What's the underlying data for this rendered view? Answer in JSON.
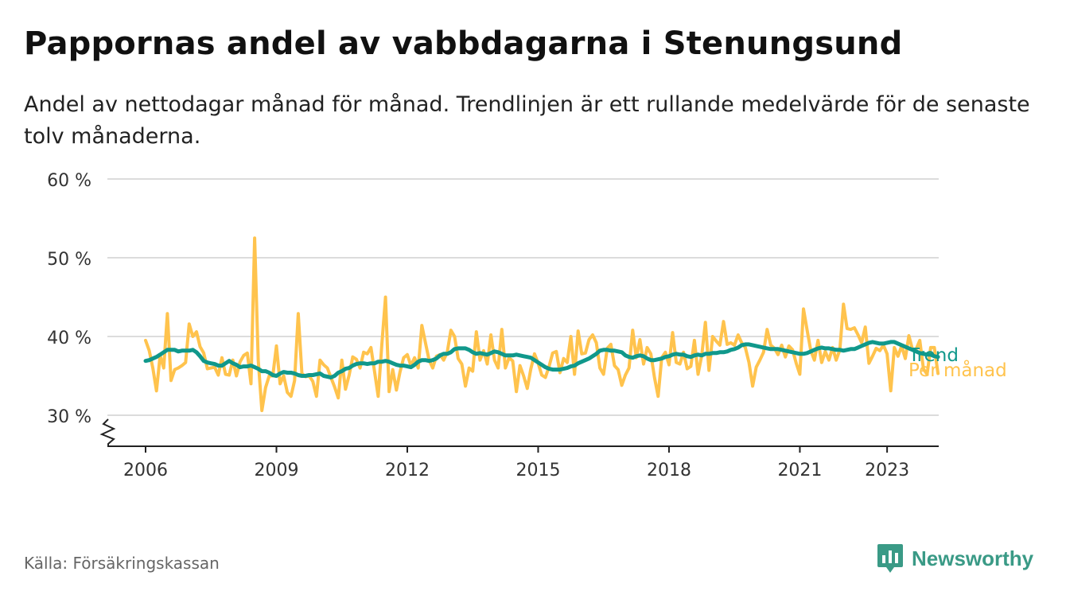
{
  "title": "Pappornas andel av vabbdagarna i Stenungsund",
  "subtitle": "Andel av nettodagar månad för månad. Trendlinjen är ett rullande medelvärde för de senaste tolv månaderna.",
  "source": "Källa: Försäkringskassan",
  "brand": {
    "name": "Newsworthy",
    "color": "#3a9a86",
    "icon": "bar-chart-bubble-icon"
  },
  "chart_data": {
    "type": "line",
    "ylim": [
      26,
      60
    ],
    "y_ticks": [
      30,
      40,
      50,
      60
    ],
    "y_tick_labels": [
      "30 %",
      "40 %",
      "50 %",
      "60 %"
    ],
    "y_axis_break": true,
    "x_ticks": [
      "2006",
      "2009",
      "2012",
      "2015",
      "2018",
      "2021",
      "2023"
    ],
    "x_start": "2006-01",
    "grid": "horizontal",
    "series": [
      {
        "name": "Per månad",
        "color": "#ffc34d",
        "values": [
          39.5,
          38.2,
          36.0,
          33.1,
          37.6,
          36.0,
          42.9,
          34.4,
          35.8,
          36.0,
          36.3,
          36.7,
          41.6,
          40.0,
          40.6,
          38.7,
          37.9,
          35.9,
          36.0,
          36.1,
          35.1,
          37.3,
          35.2,
          35.1,
          37.0,
          35.0,
          36.8,
          37.6,
          37.9,
          34.0,
          52.5,
          37.0,
          30.6,
          33.5,
          35.0,
          35.0,
          38.8,
          34.0,
          35.0,
          32.9,
          32.4,
          34.4,
          42.9,
          35.3,
          34.9,
          35.0,
          34.3,
          32.4,
          37.0,
          36.4,
          36.0,
          34.8,
          33.6,
          32.2,
          37.0,
          33.3,
          35.1,
          37.4,
          37.1,
          36.0,
          38.0,
          37.8,
          38.6,
          35.5,
          32.4,
          39.0,
          45.0,
          33.0,
          35.8,
          33.2,
          35.5,
          37.3,
          37.7,
          36.3,
          37.3,
          36.0,
          41.4,
          39.2,
          37.0,
          36.0,
          37.5,
          37.7,
          37.0,
          38.0,
          40.8,
          40.0,
          37.2,
          36.5,
          33.7,
          36.0,
          35.6,
          40.6,
          37.0,
          38.2,
          36.5,
          40.2,
          37.0,
          36.0,
          40.9,
          36.0,
          37.3,
          36.9,
          33.0,
          36.3,
          35.0,
          33.4,
          35.9,
          37.8,
          36.6,
          35.1,
          34.8,
          36.2,
          37.9,
          38.1,
          35.4,
          37.2,
          36.7,
          40.0,
          35.2,
          40.7,
          37.8,
          37.9,
          39.6,
          40.2,
          39.2,
          36.0,
          35.2,
          38.5,
          39.0,
          36.3,
          35.8,
          33.8,
          35.1,
          36.0,
          40.8,
          37.3,
          39.6,
          36.5,
          38.6,
          37.8,
          34.8,
          32.4,
          37.3,
          38.0,
          36.4,
          40.5,
          36.7,
          36.5,
          38.0,
          35.9,
          36.2,
          39.5,
          35.2,
          37.6,
          41.8,
          35.7,
          40.0,
          39.4,
          38.9,
          41.9,
          39.0,
          39.2,
          38.9,
          40.2,
          39.2,
          38.6,
          36.7,
          33.7,
          36.1,
          37.0,
          38.0,
          40.9,
          38.9,
          38.5,
          37.7,
          38.9,
          37.4,
          38.8,
          38.3,
          36.6,
          35.2,
          43.5,
          40.8,
          38.2,
          37.0,
          39.5,
          36.7,
          38.1,
          37.0,
          38.6,
          37.0,
          38.3,
          44.1,
          41.0,
          40.9,
          41.1,
          40.2,
          39.2,
          41.2,
          36.6,
          37.5,
          38.5,
          38.2,
          38.9,
          37.8,
          33.1,
          38.6,
          37.5,
          38.8,
          37.2,
          40.1,
          38.3,
          38.4,
          39.5,
          35.9,
          35.2,
          38.6,
          38.6,
          35.3
        ]
      },
      {
        "name": "Trend",
        "color": "#10988b",
        "values": [
          36.9,
          37.0,
          37.2,
          37.4,
          37.7,
          38.0,
          38.3,
          38.3,
          38.3,
          38.1,
          38.2,
          38.2,
          38.2,
          38.3,
          38.0,
          37.5,
          36.9,
          36.7,
          36.6,
          36.5,
          36.3,
          36.3,
          36.6,
          36.9,
          36.6,
          36.4,
          36.1,
          36.2,
          36.2,
          36.3,
          36.1,
          35.9,
          35.6,
          35.6,
          35.4,
          35.1,
          35.0,
          35.3,
          35.5,
          35.4,
          35.4,
          35.3,
          35.1,
          35.0,
          35.0,
          35.1,
          35.1,
          35.2,
          35.3,
          35.0,
          34.9,
          34.8,
          35.0,
          35.4,
          35.6,
          35.9,
          36.0,
          36.3,
          36.5,
          36.6,
          36.6,
          36.5,
          36.6,
          36.6,
          36.8,
          36.8,
          36.9,
          36.8,
          36.6,
          36.4,
          36.3,
          36.3,
          36.2,
          36.1,
          36.4,
          36.8,
          37.0,
          37.0,
          36.9,
          37.0,
          37.2,
          37.6,
          37.8,
          37.8,
          38.0,
          38.4,
          38.5,
          38.5,
          38.5,
          38.3,
          38.0,
          37.8,
          37.9,
          37.8,
          37.7,
          37.9,
          38.1,
          38.0,
          37.8,
          37.6,
          37.6,
          37.6,
          37.7,
          37.6,
          37.5,
          37.4,
          37.3,
          37.0,
          36.7,
          36.4,
          36.1,
          35.9,
          35.8,
          35.8,
          35.8,
          35.9,
          36.0,
          36.2,
          36.3,
          36.6,
          36.8,
          37.0,
          37.2,
          37.5,
          37.8,
          38.2,
          38.3,
          38.3,
          38.2,
          38.2,
          38.1,
          38.0,
          37.6,
          37.4,
          37.3,
          37.5,
          37.6,
          37.5,
          37.2,
          37.0,
          37.0,
          37.1,
          37.2,
          37.4,
          37.5,
          37.7,
          37.8,
          37.7,
          37.7,
          37.5,
          37.4,
          37.6,
          37.7,
          37.6,
          37.8,
          37.8,
          37.9,
          37.9,
          38.0,
          38.0,
          38.1,
          38.3,
          38.4,
          38.6,
          38.9,
          39.0,
          39.0,
          38.9,
          38.8,
          38.7,
          38.6,
          38.5,
          38.4,
          38.4,
          38.4,
          38.3,
          38.2,
          38.1,
          38.0,
          37.9,
          37.8,
          37.8,
          37.9,
          38.1,
          38.3,
          38.5,
          38.6,
          38.5,
          38.5,
          38.4,
          38.3,
          38.3,
          38.2,
          38.3,
          38.4,
          38.4,
          38.6,
          38.8,
          39.0,
          39.2,
          39.3,
          39.2,
          39.1,
          39.1,
          39.2,
          39.3,
          39.3,
          39.1,
          38.9,
          38.7,
          38.5,
          38.3,
          38.1,
          37.9,
          37.8,
          37.7,
          37.7,
          37.5,
          37.4
        ]
      }
    ]
  }
}
